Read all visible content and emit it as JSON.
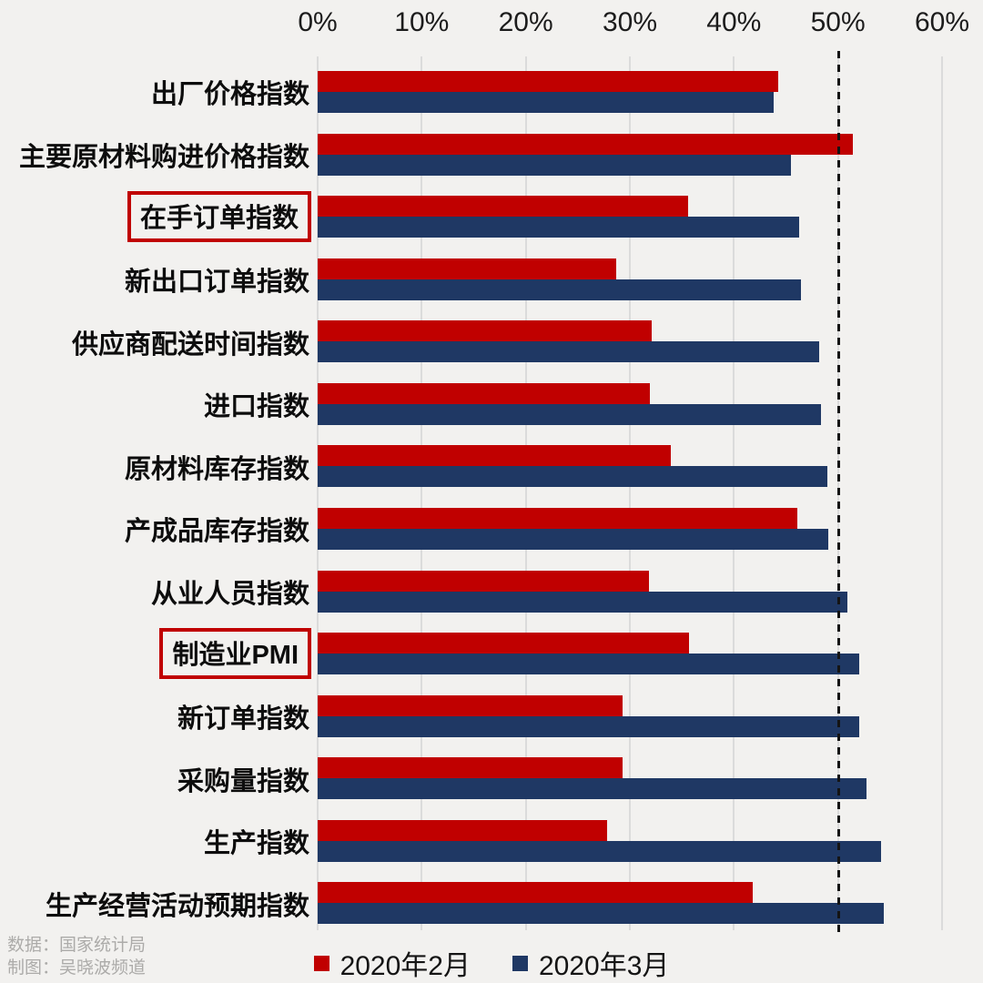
{
  "chart_data": {
    "type": "bar",
    "orientation": "horizontal",
    "title": "",
    "categories": [
      "出厂价格指数",
      "主要原材料购进价格指数",
      "在手订单指数",
      "新出口订单指数",
      "供应商配送时间指数",
      "进口指数",
      "原材料库存指数",
      "产成品库存指数",
      "从业人员指数",
      "制造业PMI",
      "新订单指数",
      "采购量指数",
      "生产指数",
      "生产经营活动预期指数"
    ],
    "boxed_category_indexes": [
      2,
      9
    ],
    "series": [
      {
        "name": "2020年2月",
        "color": "#C00000",
        "values": [
          44.3,
          51.4,
          35.6,
          28.7,
          32.1,
          31.9,
          33.9,
          46.1,
          31.8,
          35.7,
          29.3,
          29.3,
          27.8,
          41.8
        ]
      },
      {
        "name": "2020年3月",
        "color": "#1F3864",
        "values": [
          43.8,
          45.5,
          46.3,
          46.4,
          48.2,
          48.4,
          49.0,
          49.1,
          50.9,
          52.0,
          52.0,
          52.7,
          54.1,
          54.4
        ]
      }
    ],
    "x_ticks": [
      "0%",
      "10%",
      "20%",
      "30%",
      "40%",
      "50%",
      "60%"
    ],
    "xlim": [
      0,
      60
    ],
    "reference_line_value": 50,
    "grid": "vertical",
    "legend_position": "bottom"
  },
  "footer": {
    "source_line": "数据：国家统计局",
    "credit_line": "制图：吴晓波频道"
  },
  "colors": {
    "background": "#F2F1EF",
    "gridline": "#DBDBDB",
    "reference_line": "#141414",
    "highlight_box": "#C00000",
    "footer_text": "#ACABA9"
  }
}
